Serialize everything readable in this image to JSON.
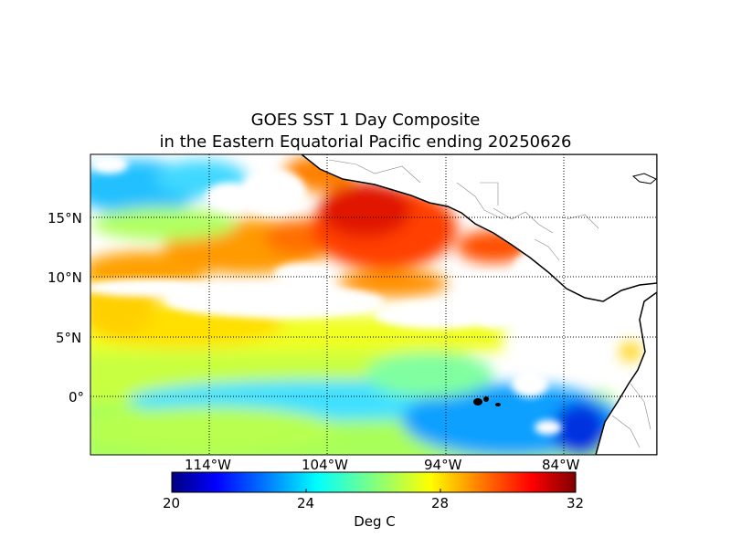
{
  "title_line1": "GOES SST 1 Day Composite",
  "title_line2": "in the Eastern Equatorial Pacific ending 20250626",
  "lat_labels": [
    "15°N",
    "10°N",
    "5°N",
    "0°"
  ],
  "lon_labels": [
    "114°W",
    "104°W",
    "94°W",
    "84°W"
  ],
  "colorbar": {
    "ticks": [
      "20",
      "24",
      "28",
      "32"
    ],
    "label": "Deg C",
    "min": 20,
    "max": 32,
    "colormap": "jet",
    "colors": [
      "#000080",
      "#0000ff",
      "#0080ff",
      "#00ffff",
      "#80ff80",
      "#ffff00",
      "#ff8000",
      "#ff0000",
      "#800000"
    ]
  },
  "map": {
    "type": "sea surface temperature composite",
    "region": "Eastern Equatorial Pacific",
    "land_color": "#ffffff",
    "coastline_color": "#000000",
    "gridlines": "dotted"
  }
}
